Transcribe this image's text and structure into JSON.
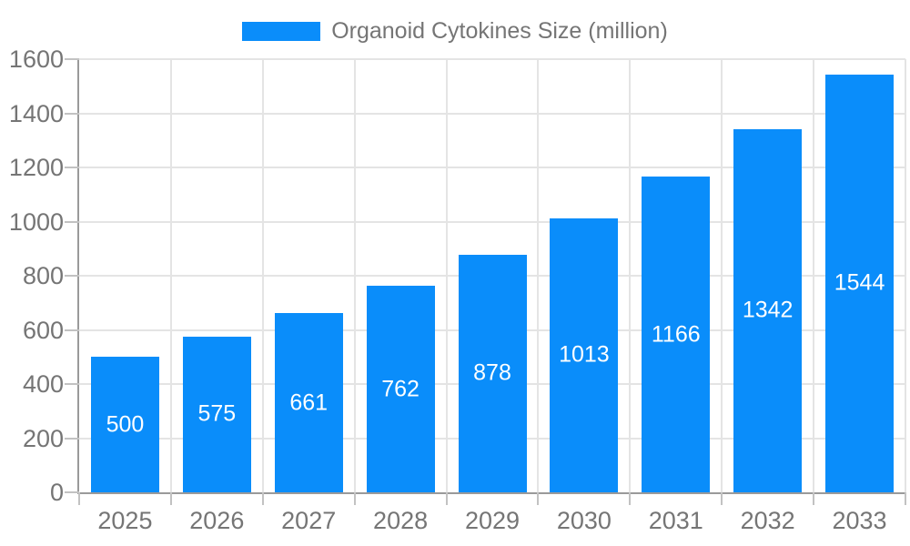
{
  "legend": {
    "label": "Organoid Cytokines Size (million)"
  },
  "chart_data": {
    "type": "bar",
    "title": "Organoid Cytokines Size (million)",
    "categories": [
      "2025",
      "2026",
      "2027",
      "2028",
      "2029",
      "2030",
      "2031",
      "2032",
      "2033"
    ],
    "series": [
      {
        "name": "Organoid Cytokines Size (million)",
        "values": [
          500,
          575,
          661,
          762,
          878,
          1013,
          1166,
          1342,
          1544
        ]
      }
    ],
    "xlabel": "",
    "ylabel": "",
    "ylim": [
      0,
      1600
    ],
    "yticks": [
      0,
      200,
      400,
      600,
      800,
      1000,
      1200,
      1400,
      1600
    ],
    "grid": true,
    "legend_position": "top-center",
    "value_labels": "inside-center",
    "colors": {
      "bar": "#0a8dfa",
      "grid_line": "#e4e4e4",
      "axis_line": "#9a9a9a",
      "tick_mark": "#c2c2c2",
      "axis_text": "#757575",
      "value_label": "#ffffff",
      "background": "#ffffff"
    }
  }
}
